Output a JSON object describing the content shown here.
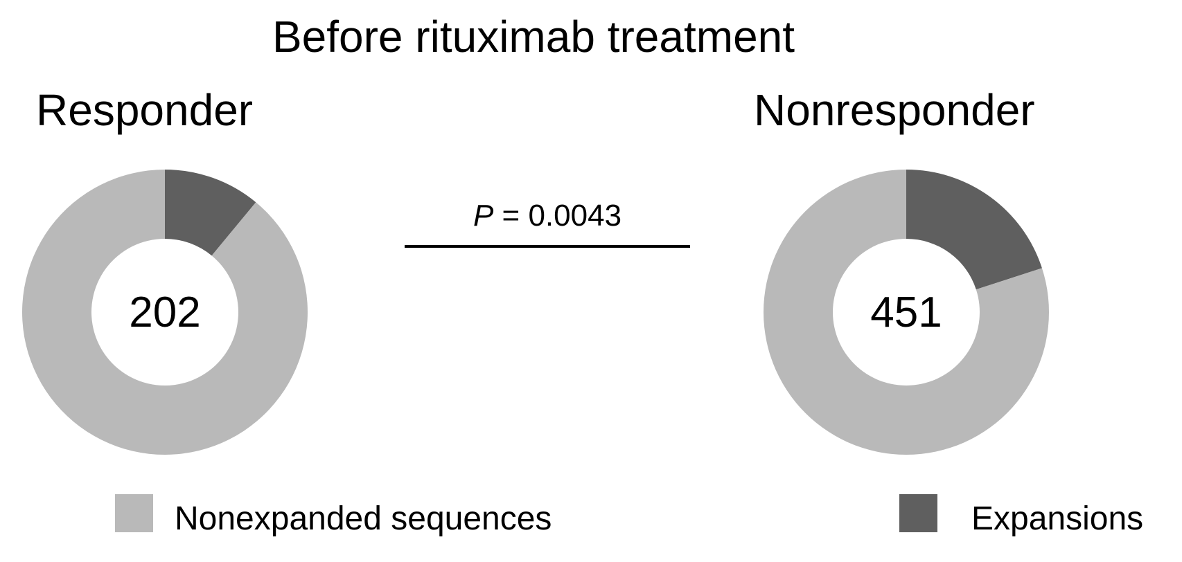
{
  "figure": {
    "title": "Before rituximab treatment",
    "stat_label_symbol": "P",
    "stat_label_rest": " = 0.0043"
  },
  "chart_data": [
    {
      "type": "pie",
      "style": "donut",
      "title": "Responder",
      "center_label": "202",
      "slices": [
        {
          "label": "Expansions",
          "value": 11,
          "color": "#5f5f5f"
        },
        {
          "label": "Nonexpanded sequences",
          "value": 89,
          "color": "#b9b9b9"
        }
      ]
    },
    {
      "type": "pie",
      "style": "donut",
      "title": "Nonresponder",
      "center_label": "451",
      "slices": [
        {
          "label": "Expansions",
          "value": 20,
          "color": "#5f5f5f"
        },
        {
          "label": "Nonexpanded sequences",
          "value": 80,
          "color": "#b9b9b9"
        }
      ]
    }
  ],
  "legend": {
    "items": [
      {
        "label": "Nonexpanded sequences",
        "color": "#b9b9b9"
      },
      {
        "label": "Expansions",
        "color": "#5f5f5f"
      }
    ]
  }
}
